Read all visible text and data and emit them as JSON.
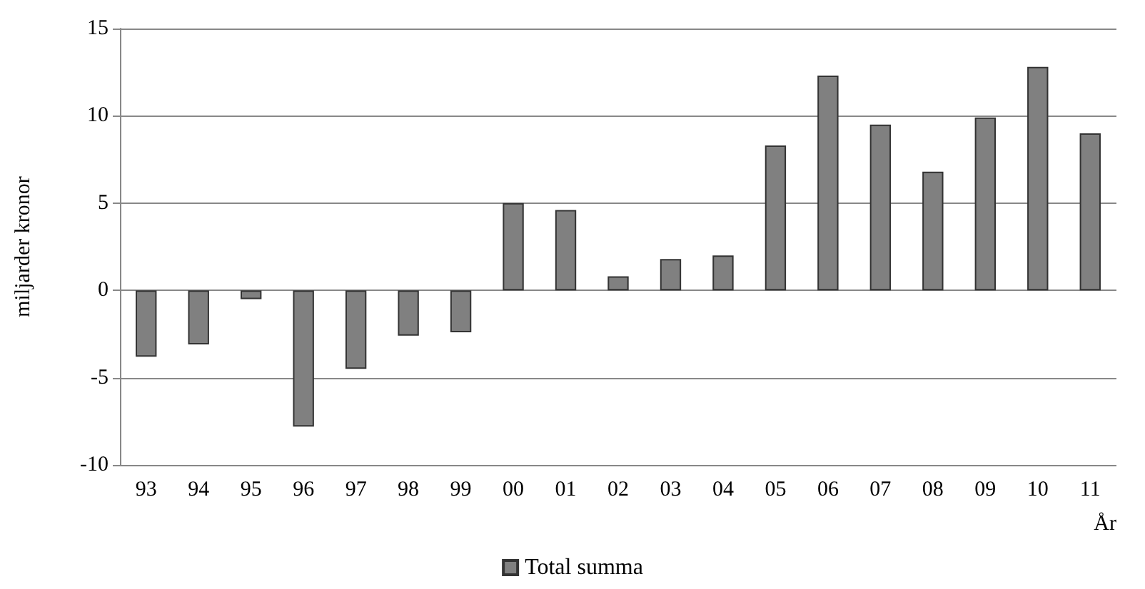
{
  "chart_data": {
    "type": "bar",
    "xlabel": "År",
    "ylabel": "miljarder kronor",
    "categories": [
      "93",
      "94",
      "95",
      "96",
      "97",
      "98",
      "99",
      "00",
      "01",
      "02",
      "03",
      "04",
      "05",
      "06",
      "07",
      "08",
      "09",
      "10",
      "11"
    ],
    "series": [
      {
        "name": "Total summa",
        "color": "#808080",
        "values": [
          -3.8,
          -3.1,
          -0.5,
          -7.8,
          -4.5,
          -2.6,
          -2.4,
          5.0,
          4.6,
          0.8,
          1.8,
          2.0,
          8.3,
          12.3,
          9.5,
          6.8,
          9.9,
          12.8,
          9.0
        ]
      }
    ],
    "ylim": [
      -10,
      15
    ],
    "yticks": [
      -10,
      -5,
      0,
      5,
      10,
      15
    ],
    "grid": "y",
    "legend": "bottom"
  }
}
